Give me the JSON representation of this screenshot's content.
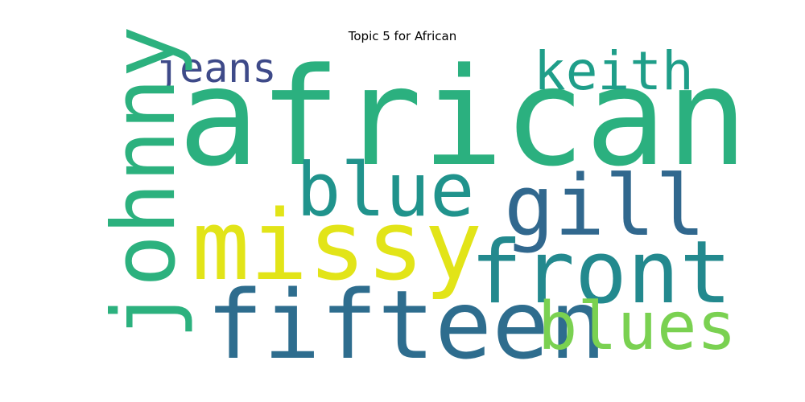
{
  "title": "Topic 5 for African",
  "words": {
    "african": {
      "text": "african",
      "color": "#2bb07f"
    },
    "keith": {
      "text": "keith",
      "color": "#1f9e89"
    },
    "jeans": {
      "text": "jeans",
      "color": "#3e4a89"
    },
    "johnny": {
      "text": "johnny",
      "color": "#2cb17e"
    },
    "blue": {
      "text": "blue",
      "color": "#20938c"
    },
    "gill": {
      "text": "gill",
      "color": "#31688e"
    },
    "missy": {
      "text": "missy",
      "color": "#e2e418"
    },
    "front": {
      "text": "front",
      "color": "#23898e"
    },
    "fifteen": {
      "text": "fifteen",
      "color": "#2e6d8e"
    },
    "blues": {
      "text": "blues",
      "color": "#7ad151"
    }
  }
}
